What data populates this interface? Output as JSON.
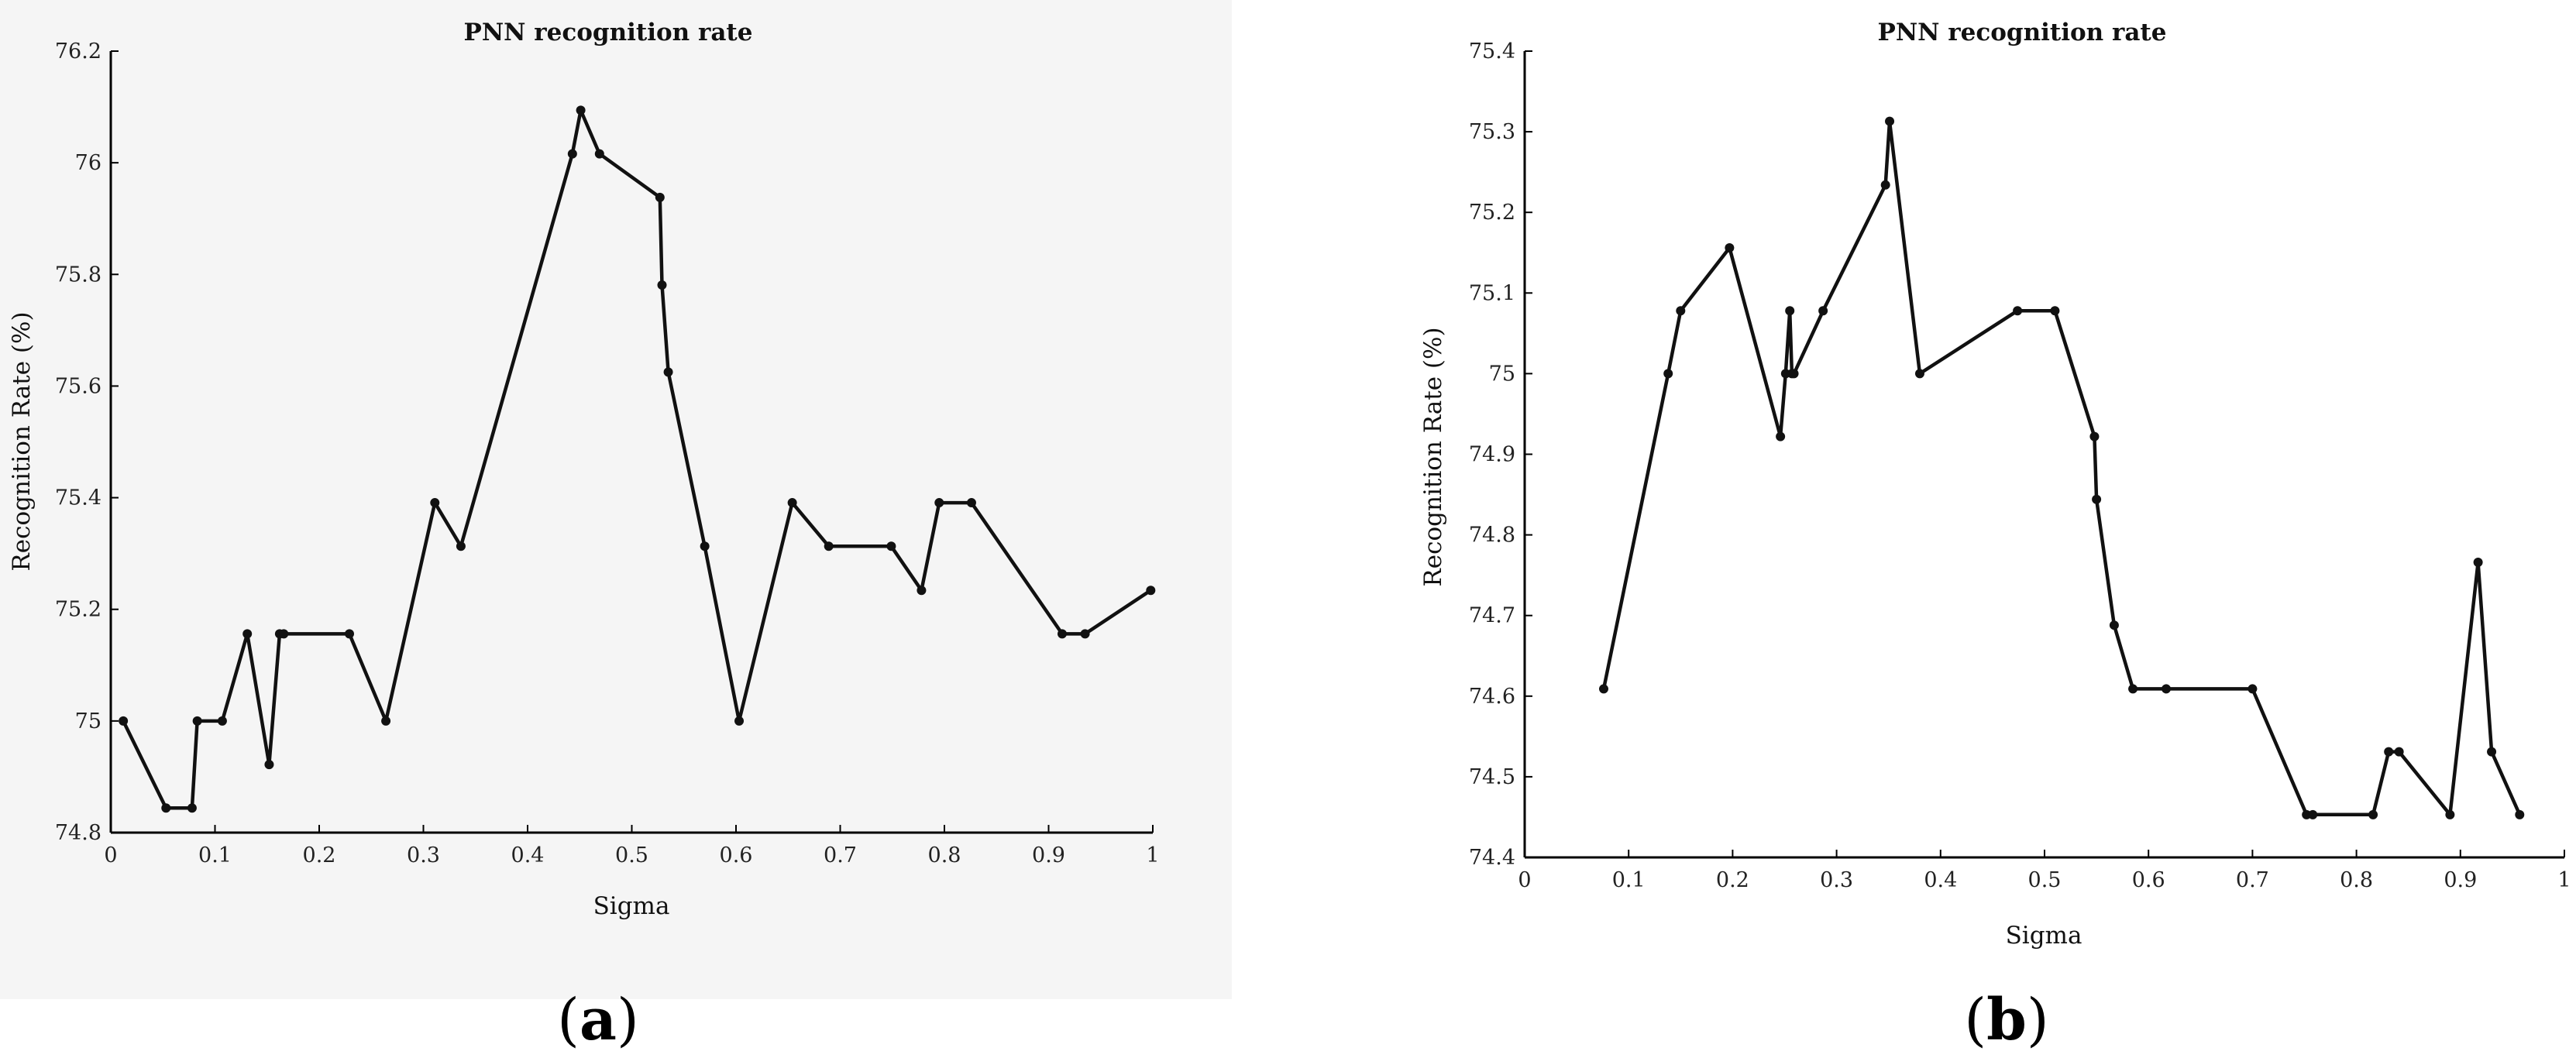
{
  "chart_data": [
    {
      "type": "line",
      "caption": "a",
      "title": "PNN recognition rate",
      "xlabel": "Sigma",
      "ylabel": "Recognition Rate (%)",
      "xlim": [
        0,
        1
      ],
      "ylim": [
        74.8,
        76.2
      ],
      "xticks": [
        "0",
        "0.1",
        "0.2",
        "0.3",
        "0.4",
        "0.5",
        "0.6",
        "0.7",
        "0.8",
        "0.9",
        "1"
      ],
      "yticks": [
        "74.8",
        "75",
        "75.2",
        "75.4",
        "75.6",
        "75.8",
        "76",
        "76.2"
      ],
      "x": [
        0.012,
        0.053,
        0.078,
        0.083,
        0.107,
        0.131,
        0.152,
        0.162,
        0.166,
        0.229,
        0.264,
        0.311,
        0.336,
        0.443,
        0.451,
        0.469,
        0.527,
        0.529,
        0.535,
        0.57,
        0.603,
        0.654,
        0.689,
        0.749,
        0.778,
        0.795,
        0.826,
        0.913,
        0.935,
        0.998
      ],
      "y": [
        75.0,
        74.844,
        74.844,
        75.0,
        75.0,
        75.156,
        74.922,
        75.156,
        75.156,
        75.156,
        75.0,
        75.391,
        75.313,
        76.016,
        76.094,
        76.016,
        75.938,
        75.781,
        75.625,
        75.313,
        75.0,
        75.391,
        75.313,
        75.313,
        75.234,
        75.391,
        75.391,
        75.156,
        75.156,
        75.234
      ]
    },
    {
      "type": "line",
      "caption": "b",
      "title": "PNN recognition rate",
      "xlabel": "Sigma",
      "ylabel": "Recognition Rate (%)",
      "xlim": [
        0,
        1
      ],
      "ylim": [
        74.4,
        75.4
      ],
      "xticks": [
        "0",
        "0.1",
        "0.2",
        "0.3",
        "0.4",
        "0.5",
        "0.6",
        "0.7",
        "0.8",
        "0.9",
        "1"
      ],
      "yticks": [
        "74.4",
        "74.5",
        "74.6",
        "74.7",
        "74.8",
        "74.9",
        "75",
        "75.1",
        "75.2",
        "75.3",
        "75.4"
      ],
      "x": [
        0.076,
        0.138,
        0.15,
        0.197,
        0.246,
        0.251,
        0.255,
        0.257,
        0.259,
        0.287,
        0.347,
        0.351,
        0.38,
        0.474,
        0.51,
        0.548,
        0.55,
        0.567,
        0.585,
        0.617,
        0.7,
        0.752,
        0.758,
        0.816,
        0.831,
        0.841,
        0.89,
        0.917,
        0.93,
        0.957
      ],
      "y": [
        74.609,
        75.0,
        75.078,
        75.156,
        74.922,
        75.0,
        75.078,
        75.0,
        75.0,
        75.078,
        75.234,
        75.313,
        75.0,
        75.078,
        75.078,
        74.922,
        74.844,
        74.688,
        74.609,
        74.609,
        74.609,
        74.453,
        74.453,
        74.453,
        74.531,
        74.531,
        74.453,
        74.766,
        74.531,
        74.453
      ]
    }
  ]
}
